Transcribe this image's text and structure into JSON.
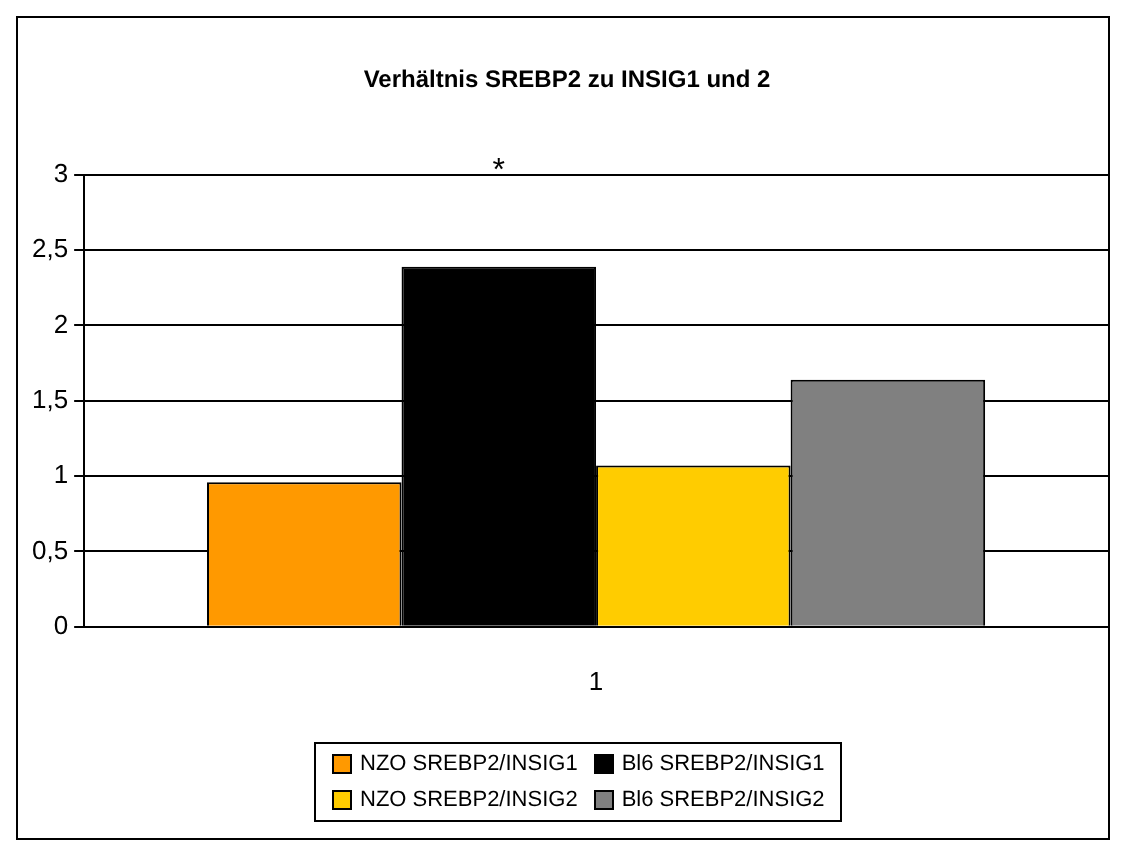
{
  "chart_data": {
    "type": "bar",
    "title": "Verhältnis SREBP2 zu INSIG1 und 2",
    "categories": [
      "1"
    ],
    "series": [
      {
        "name": "NZO SREBP2/INSIG1",
        "color": "#ff9900",
        "values": [
          0.96
        ]
      },
      {
        "name": "Bl6 SREBP2/INSIG1",
        "color": "#000000",
        "values": [
          2.39
        ]
      },
      {
        "name": "NZO SREBP2/INSIG2",
        "color": "#ffcc00",
        "values": [
          1.07
        ]
      },
      {
        "name": "Bl6 SREBP2/INSIG2",
        "color": "#808080",
        "values": [
          1.64
        ]
      }
    ],
    "ylim": [
      0,
      3
    ],
    "yticks": [
      0,
      {
        "value": 0.5,
        "label": "0,5"
      },
      1,
      {
        "value": 1.5,
        "label": "1,5"
      },
      2,
      {
        "value": 2.5,
        "label": "2,5"
      },
      3
    ],
    "grid": "y",
    "legend": "bottom",
    "annotations": [
      "*"
    ]
  }
}
